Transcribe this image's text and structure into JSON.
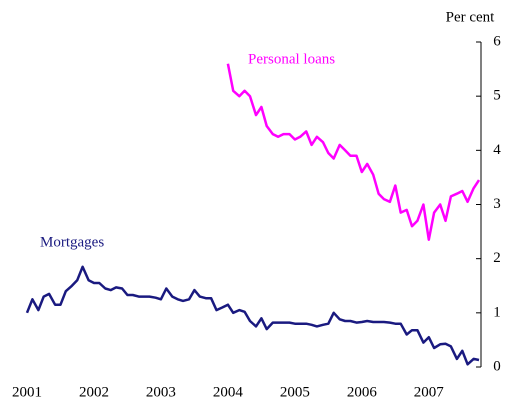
{
  "chart_data": {
    "type": "line",
    "y_axis_label": "Per cent",
    "x": [
      2001,
      2001.08,
      2001.17,
      2001.25,
      2001.33,
      2001.42,
      2001.5,
      2001.58,
      2001.67,
      2001.75,
      2001.83,
      2001.92,
      2002,
      2002.08,
      2002.17,
      2002.25,
      2002.33,
      2002.42,
      2002.5,
      2002.58,
      2002.67,
      2002.75,
      2002.83,
      2002.92,
      2003,
      2003.08,
      2003.17,
      2003.25,
      2003.33,
      2003.42,
      2003.5,
      2003.58,
      2003.67,
      2003.75,
      2003.83,
      2003.92,
      2004,
      2004.08,
      2004.17,
      2004.25,
      2004.33,
      2004.42,
      2004.5,
      2004.58,
      2004.67,
      2004.75,
      2004.83,
      2004.92,
      2005,
      2005.08,
      2005.17,
      2005.25,
      2005.33,
      2005.42,
      2005.5,
      2005.58,
      2005.67,
      2005.75,
      2005.83,
      2005.92,
      2006,
      2006.08,
      2006.17,
      2006.25,
      2006.33,
      2006.42,
      2006.5,
      2006.58,
      2006.67,
      2006.75,
      2006.83,
      2006.92,
      2007,
      2007.08,
      2007.17,
      2007.25,
      2007.33,
      2007.42,
      2007.5,
      2007.58,
      2007.67,
      2007.75
    ],
    "series": [
      {
        "name": "Mortgages",
        "color": "#1a1a80",
        "values": [
          1.0,
          1.25,
          1.05,
          1.3,
          1.35,
          1.15,
          1.15,
          1.4,
          1.5,
          1.6,
          1.85,
          1.6,
          1.55,
          1.55,
          1.45,
          1.42,
          1.47,
          1.45,
          1.33,
          1.33,
          1.3,
          1.3,
          1.3,
          1.28,
          1.25,
          1.45,
          1.3,
          1.25,
          1.22,
          1.25,
          1.42,
          1.3,
          1.27,
          1.27,
          1.05,
          1.1,
          1.15,
          1.0,
          1.05,
          1.02,
          0.85,
          0.75,
          0.9,
          0.7,
          0.82,
          0.82,
          0.82,
          0.82,
          0.8,
          0.8,
          0.8,
          0.78,
          0.75,
          0.78,
          0.8,
          1.0,
          0.88,
          0.85,
          0.85,
          0.82,
          0.83,
          0.85,
          0.83,
          0.83,
          0.83,
          0.82,
          0.8,
          0.8,
          0.6,
          0.68,
          0.68,
          0.45,
          0.55,
          0.35,
          0.42,
          0.43,
          0.38,
          0.15,
          0.3,
          0.05,
          0.15,
          0.13
        ]
      },
      {
        "name": "Personal loans",
        "color": "#ff00ff",
        "values": [
          null,
          null,
          null,
          null,
          null,
          null,
          null,
          null,
          null,
          null,
          null,
          null,
          null,
          null,
          null,
          null,
          null,
          null,
          null,
          null,
          null,
          null,
          null,
          null,
          null,
          null,
          null,
          null,
          null,
          null,
          null,
          null,
          null,
          null,
          null,
          null,
          5.6,
          5.1,
          5.0,
          5.1,
          5.0,
          4.65,
          4.8,
          4.45,
          4.3,
          4.25,
          4.3,
          4.3,
          4.2,
          4.25,
          4.35,
          4.1,
          4.25,
          4.15,
          3.95,
          3.85,
          4.1,
          4.0,
          3.9,
          3.9,
          3.6,
          3.75,
          3.55,
          3.2,
          3.1,
          3.05,
          3.35,
          2.85,
          2.9,
          2.6,
          2.7,
          3.0,
          2.35,
          2.85,
          3.0,
          2.7,
          3.15,
          3.2,
          3.25,
          3.05,
          3.3,
          3.45
        ]
      }
    ],
    "xlim": [
      2001,
      2007.75
    ],
    "xticks": [
      2001,
      2002,
      2003,
      2004,
      2005,
      2006,
      2007
    ],
    "ylim": [
      0,
      6
    ],
    "yticks": [
      0,
      1,
      2,
      3,
      4,
      5,
      6
    ],
    "y_axis_side": "right",
    "grid": false
  }
}
